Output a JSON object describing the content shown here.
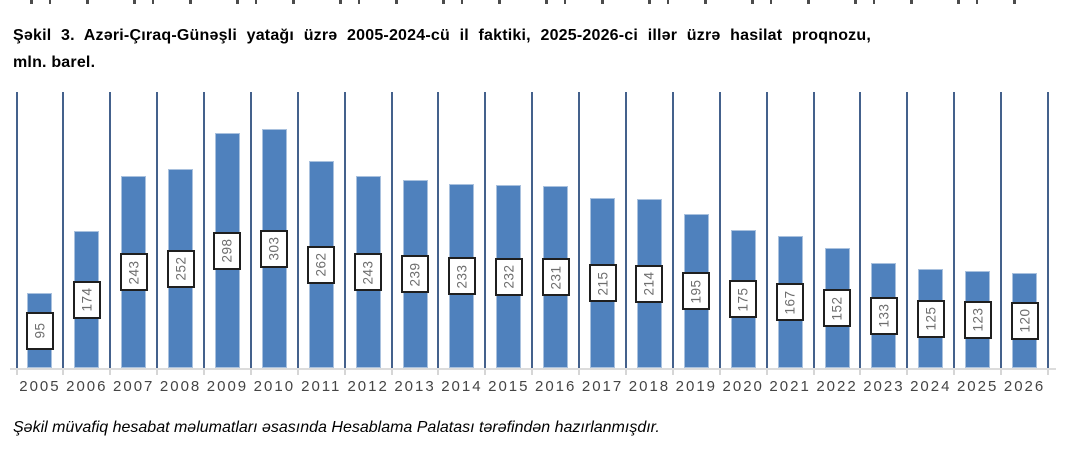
{
  "figure": {
    "title_line1": "Şəkil 3. Azəri-Çıraq-Günəşli yatağı üzrə 2005-2024-cü il faktiki, 2025-2026-ci illər üzrə hasilat proqnozu,",
    "title_line2": "mln. barel.",
    "caption": "Şəkil müvafiq hesabat məlumatları əsasında Hesablama Palatası tərəfindən hazırlanmışdır."
  },
  "chart_data": {
    "type": "bar",
    "title": "Şəkil 3. Azəri-Çıraq-Günəşli yatağı üzrə 2005-2024-cü il faktiki, 2025-2026-ci illər üzrə hasilat proqnozu, mln. barel.",
    "categories": [
      "2005",
      "2006",
      "2007",
      "2008",
      "2009",
      "2010",
      "2011",
      "2012",
      "2013",
      "2014",
      "2015",
      "2016",
      "2017",
      "2018",
      "2019",
      "2020",
      "2021",
      "2022",
      "2023",
      "2024",
      "2025",
      "2026"
    ],
    "values": [
      95,
      174,
      243,
      252,
      298,
      303,
      262,
      243,
      239,
      233,
      232,
      231,
      215,
      214,
      195,
      175,
      167,
      152,
      133,
      125,
      123,
      120
    ],
    "xlabel": "",
    "ylabel": "",
    "ylim": [
      0,
      350
    ],
    "grid": "vertical category separators",
    "legend": "none",
    "data_labels": "rotated 90deg in white boxes centered on bars",
    "colors": {
      "bar_fill": "#4F81BD",
      "bar_edge": "#A9C1DE",
      "gridline": "#44618C",
      "axis": "#DCDCDC",
      "label_box_bg": "#FFFFFF",
      "label_box_border": "#1F1F1F",
      "label_text": "#6E6E6E",
      "year_text": "#444444"
    }
  }
}
